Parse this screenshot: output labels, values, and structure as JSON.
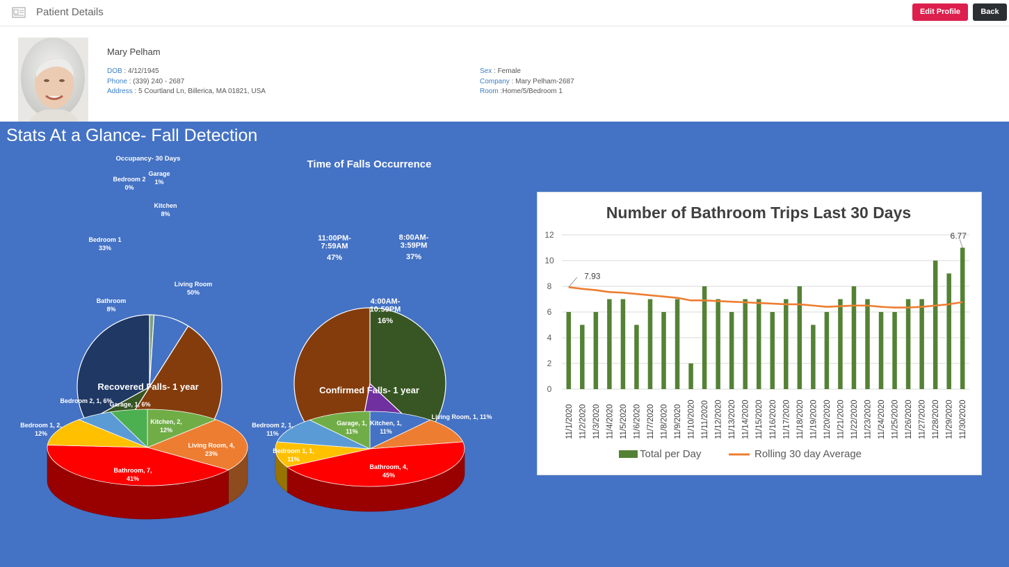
{
  "header": {
    "title": "Patient Details",
    "edit_label": "Edit Profile",
    "back_label": "Back",
    "icon": "patient-card-icon"
  },
  "patient": {
    "name": "Mary Pelham",
    "fields_left": [
      {
        "label": "DOB",
        "value": "4/12/1945",
        "sep": " : "
      },
      {
        "label": "Phone",
        "value": "(339) 240 - 2687",
        "sep": " : "
      },
      {
        "label": "Address",
        "value": "5 Courtland Ln, Billerica, MA 01821, USA",
        "sep": " : "
      }
    ],
    "fields_right": [
      {
        "label": "Sex",
        "value": "Female",
        "sep": " : "
      },
      {
        "label": "Company",
        "value": "Mary Pelham-2687",
        "sep": " : "
      },
      {
        "label": "Room",
        "value": "Home/5/Bedroom 1",
        "sep": " :"
      }
    ]
  },
  "dashboard": {
    "title": "Stats At a Glance- Fall Detection"
  },
  "colors": {
    "accent": "#dc1f4d",
    "dark": "#2b2f33",
    "dashboard_bg": "#4472c4",
    "bar": "#548235",
    "line": "#ed7d31"
  },
  "chart_data": [
    {
      "type": "pie",
      "title": "Occupancy- 30 Days",
      "slices": [
        {
          "label": "Garage",
          "value": 1,
          "text": "1%",
          "color": "#7f9f7f"
        },
        {
          "label": "Kitchen",
          "value": 8,
          "text": "8%",
          "color": "#4472c4"
        },
        {
          "label": "Living Room",
          "value": 50,
          "text": "50%",
          "color": "#843c0c"
        },
        {
          "label": "Bathroom",
          "value": 8,
          "text": "8%",
          "color": "#375623"
        },
        {
          "label": "Bedroom 1",
          "value": 33,
          "text": "33%",
          "color": "#1f3864"
        },
        {
          "label": "Bedroom 2",
          "value": 0,
          "text": "0%",
          "color": "#a5a5a5"
        }
      ]
    },
    {
      "type": "pie",
      "title": "Time of Falls Occurrence",
      "slices": [
        {
          "label": "8:00AM-\n3:59PM",
          "value": 37,
          "text": "37%",
          "color": "#375623"
        },
        {
          "label": "4:00AM-\n10:59PM",
          "value": 16,
          "text": "16%",
          "color": "#7030a0"
        },
        {
          "label": "11:00PM-\n7:59AM",
          "value": 47,
          "text": "47%",
          "color": "#843c0c"
        }
      ]
    },
    {
      "type": "pie",
      "title": "Recovered Falls- 1 year",
      "slices": [
        {
          "label": "Kitchen, 2,",
          "value": 12,
          "text": "12%",
          "color": "#70ad47"
        },
        {
          "label": "Living Room, 4,",
          "value": 23,
          "text": "23%",
          "color": "#ed7d31"
        },
        {
          "label": "Bathroom, 7,",
          "value": 41,
          "text": "41%",
          "color": "#ff0000"
        },
        {
          "label": "Bedroom 1, 2,",
          "value": 12,
          "text": "12%",
          "color": "#ffc000"
        },
        {
          "label": "Bedroom 2, 1, 6%",
          "value": 6,
          "text": "",
          "color": "#5b9bd5"
        },
        {
          "label": "Garage, 1, 6%",
          "value": 6,
          "text": "",
          "color": "#4caf50"
        }
      ]
    },
    {
      "type": "pie",
      "title": "Confirmed Falls- 1 year",
      "slices": [
        {
          "label": "Kitchen, 1,",
          "value": 11,
          "text": "11%",
          "color": "#4472c4"
        },
        {
          "label": "Living Room, 1, 11%",
          "value": 11,
          "text": "",
          "color": "#ed7d31"
        },
        {
          "label": "Bathroom, 4,",
          "value": 45,
          "text": "45%",
          "color": "#ff0000"
        },
        {
          "label": "Bedroom 1, 1,",
          "value": 11,
          "text": "11%",
          "color": "#ffc000"
        },
        {
          "label": "Bedroom 2, 1,",
          "value": 11,
          "text": "11%",
          "color": "#5b9bd5"
        },
        {
          "label": "Garage, 1,",
          "value": 11,
          "text": "11%",
          "color": "#70ad47"
        }
      ]
    },
    {
      "type": "bar",
      "title": "Number of Bathroom Trips Last 30 Days",
      "categories": [
        "11/1/2020",
        "11/2/2020",
        "11/3/2020",
        "11/4/2020",
        "11/5/2020",
        "11/6/2020",
        "11/7/2020",
        "11/8/2020",
        "11/9/2020",
        "11/10/2020",
        "11/11/2020",
        "11/12/2020",
        "11/13/2020",
        "11/14/2020",
        "11/15/2020",
        "11/16/2020",
        "11/17/2020",
        "11/18/2020",
        "11/19/2020",
        "11/20/2020",
        "11/21/2020",
        "11/22/2020",
        "11/23/2020",
        "11/24/2020",
        "11/25/2020",
        "11/26/2020",
        "11/27/2020",
        "11/28/2020",
        "11/29/2020",
        "11/30/2020"
      ],
      "series": [
        {
          "name": "Total per Day",
          "type": "bar",
          "values": [
            6,
            5,
            6,
            7,
            7,
            5,
            7,
            6,
            7,
            2,
            8,
            7,
            6,
            7,
            7,
            6,
            7,
            8,
            5,
            6,
            7,
            8,
            7,
            6,
            6,
            7,
            7,
            10,
            9,
            11
          ]
        },
        {
          "name": "Rolling 30 day Average",
          "type": "line",
          "values": [
            7.93,
            7.8,
            7.7,
            7.55,
            7.5,
            7.4,
            7.3,
            7.2,
            7.1,
            6.9,
            6.9,
            6.85,
            6.8,
            6.75,
            6.7,
            6.65,
            6.6,
            6.6,
            6.5,
            6.4,
            6.45,
            6.5,
            6.5,
            6.4,
            6.35,
            6.35,
            6.4,
            6.5,
            6.6,
            6.77
          ]
        }
      ],
      "annotations": [
        "7.93",
        "6.77"
      ],
      "yticks": [
        "0",
        "2",
        "4",
        "6",
        "8",
        "10",
        "12"
      ],
      "ylim": [
        0,
        12
      ],
      "grid": true,
      "legend": "bottom"
    }
  ]
}
